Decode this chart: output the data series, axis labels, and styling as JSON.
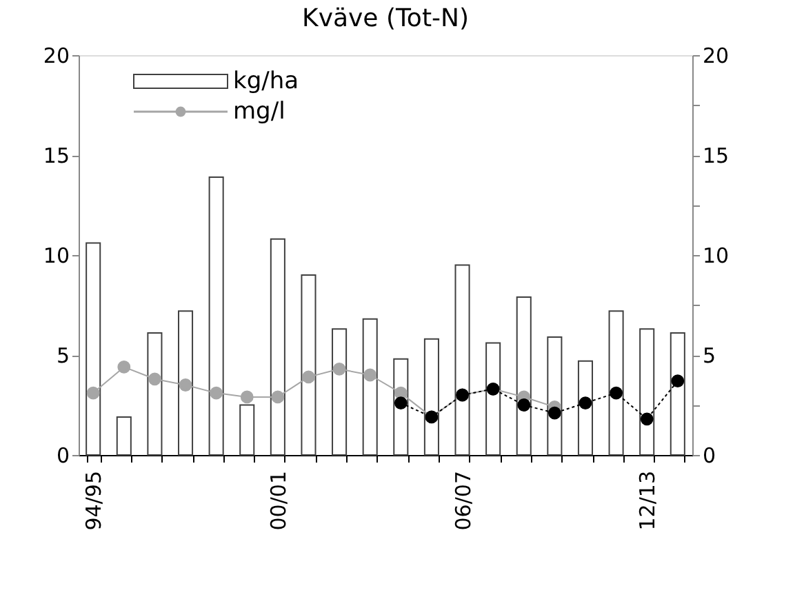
{
  "chart_data": {
    "type": "bar",
    "title": "Kväve (Tot-N)",
    "categories": [
      "94/95",
      null,
      null,
      null,
      null,
      null,
      "00/01",
      null,
      null,
      null,
      null,
      null,
      "06/07",
      null,
      null,
      null,
      null,
      null,
      "12/13",
      null
    ],
    "series": [
      {
        "name": "kg/ha",
        "color": "#ffffff",
        "values": [
          10.6,
          1.9,
          6.1,
          7.2,
          13.9,
          2.5,
          10.8,
          9.0,
          6.3,
          6.8,
          4.8,
          5.8,
          9.5,
          5.6,
          7.9,
          5.9,
          4.7,
          7.2,
          6.3,
          6.1
        ]
      },
      {
        "name": "mg/l",
        "type": "line",
        "color": "#a6a6a6",
        "marker": "circle",
        "line_style": "solid",
        "values": [
          3.1,
          4.4,
          3.8,
          3.5,
          3.1,
          2.9,
          2.9,
          3.9,
          4.3,
          4.0,
          3.1,
          1.9,
          3.0,
          3.3,
          2.9,
          2.4,
          null,
          null,
          null,
          null
        ]
      },
      {
        "type": "line",
        "color": "#000000",
        "marker": "circle",
        "line_style": "dotted",
        "values": [
          null,
          null,
          null,
          null,
          null,
          null,
          null,
          null,
          null,
          null,
          2.6,
          1.9,
          3.0,
          3.3,
          2.5,
          2.1,
          2.6,
          3.1,
          1.8,
          3.7
        ]
      }
    ],
    "ylim": [
      0,
      20
    ],
    "yticks": [
      0,
      {
        "value": 2.5,
        "label": null
      },
      5,
      {
        "value": 7.5,
        "label": null
      },
      10,
      {
        "value": 12.5,
        "label": null
      },
      15,
      {
        "value": 17.5,
        "label": null
      },
      20
    ],
    "y2lim": [
      0,
      20
    ],
    "y2ticks": [
      0,
      {
        "value": 2.5,
        "label": null
      },
      5,
      {
        "value": 7.5,
        "label": null
      },
      10,
      {
        "value": 12.5,
        "label": null
      },
      15,
      {
        "value": 17.5,
        "label": null
      },
      20
    ],
    "grid": false,
    "legend": "top left"
  }
}
